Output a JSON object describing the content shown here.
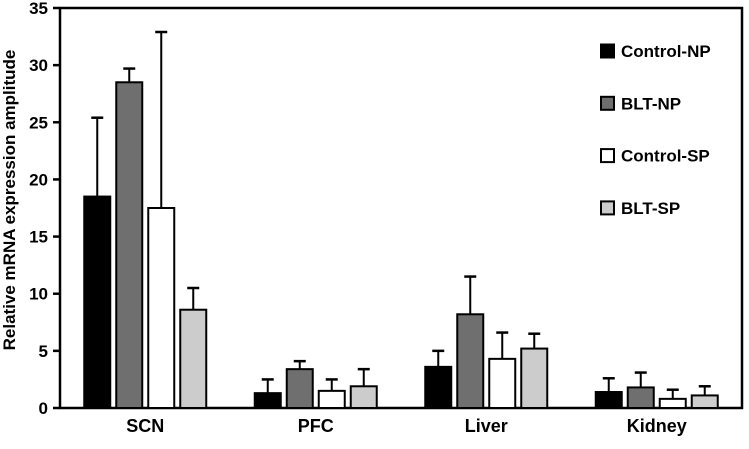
{
  "figure": {
    "background": "#ffffff",
    "axis_color": "#000000"
  },
  "chart_data": {
    "type": "bar",
    "title": "",
    "ylabel": "Relative mRNA expression amplitude",
    "xlabel": "",
    "categories": [
      "SCN",
      "PFC",
      "Liver",
      "Kidney"
    ],
    "series": [
      {
        "name": "Control-NP",
        "color": "#000000",
        "values": [
          18.5,
          1.3,
          3.6,
          1.4
        ],
        "errors": [
          6.9,
          1.2,
          1.4,
          1.2
        ]
      },
      {
        "name": "BLT-NP",
        "color": "#6f6f6f",
        "values": [
          28.5,
          3.4,
          8.2,
          1.8
        ],
        "errors": [
          1.2,
          0.7,
          3.3,
          1.3
        ]
      },
      {
        "name": "Control-SP",
        "color": "#ffffff",
        "values": [
          17.5,
          1.5,
          4.3,
          0.8
        ],
        "errors": [
          15.4,
          1.0,
          2.3,
          0.8
        ]
      },
      {
        "name": "BLT-SP",
        "color": "#cccccc",
        "values": [
          8.6,
          1.9,
          5.2,
          1.1
        ],
        "errors": [
          1.9,
          1.5,
          1.3,
          0.8
        ]
      }
    ],
    "ylim": [
      0,
      35
    ],
    "ytick_step": 5,
    "ytick_labels": [
      "0",
      "5",
      "10",
      "15",
      "20",
      "25",
      "30",
      "35"
    ],
    "grid": false,
    "error_bars": "upper",
    "legend_position": "top-right"
  }
}
